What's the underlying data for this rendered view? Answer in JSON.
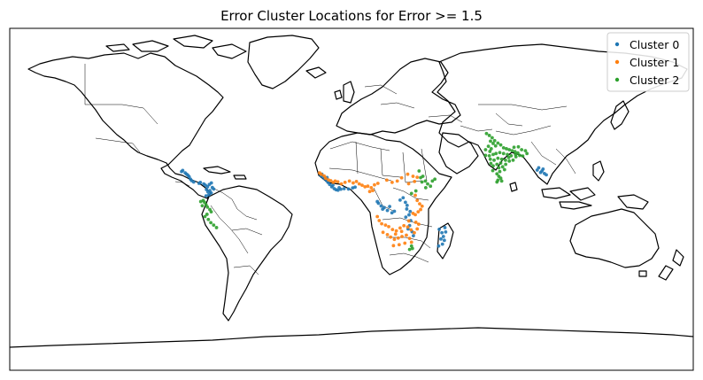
{
  "chart_data": {
    "type": "scatter",
    "title": "Error Cluster Locations for Error >= 1.5",
    "projection": "PlateCarree",
    "xlim": [
      -180,
      180
    ],
    "ylim": [
      -90,
      90
    ],
    "legend_position": "top-right",
    "series": [
      {
        "name": "Cluster 0",
        "color": "#1f77b4",
        "points": [
          [
            -89.5,
            14.6
          ],
          [
            -88.9,
            15.2
          ],
          [
            -87.6,
            13.9
          ],
          [
            -86.8,
            13.2
          ],
          [
            -86.1,
            12.6
          ],
          [
            -85.5,
            11.9
          ],
          [
            -84.8,
            10.6
          ],
          [
            -84.2,
            9.8
          ],
          [
            -83.1,
            9.1
          ],
          [
            -80.3,
            8.4
          ],
          [
            -79.6,
            8.9
          ],
          [
            -77.8,
            8.1
          ],
          [
            -76.9,
            7.4
          ],
          [
            -75.8,
            6.6
          ],
          [
            -76.4,
            5.1
          ],
          [
            -75.6,
            3.9
          ],
          [
            -74.6,
            4.6
          ],
          [
            -73.9,
            3.3
          ],
          [
            -75.1,
            2.4
          ],
          [
            -76.6,
            1.8
          ],
          [
            -73.3,
            6.2
          ],
          [
            -72.6,
            5.4
          ],
          [
            -74.9,
            7.8
          ],
          [
            -73.8,
            8.6
          ],
          [
            -16.2,
            12.5
          ],
          [
            -15.1,
            11.8
          ],
          [
            -14.2,
            10.9
          ],
          [
            -13.2,
            9.9
          ],
          [
            -12.4,
            8.9
          ],
          [
            -11.5,
            7.8
          ],
          [
            -10.4,
            6.6
          ],
          [
            -9.1,
            5.6
          ],
          [
            -8.1,
            5.0
          ],
          [
            -7.1,
            4.8
          ],
          [
            -5.6,
            5.3
          ],
          [
            -3.9,
            5.6
          ],
          [
            -1.6,
            5.4
          ],
          [
            0.6,
            6.0
          ],
          [
            1.9,
            6.4
          ],
          [
            -15.6,
            13.2
          ],
          [
            -12.9,
            11.5
          ],
          [
            -9.8,
            7.4
          ],
          [
            -6.5,
            6.1
          ],
          [
            14.2,
            -2.1
          ],
          [
            15.6,
            -3.5
          ],
          [
            17.2,
            -4.4
          ],
          [
            18.9,
            -5.9
          ],
          [
            21.3,
            -7.1
          ],
          [
            13.6,
            -1.2
          ],
          [
            16.4,
            -5.2
          ],
          [
            20.1,
            -3.8
          ],
          [
            22.6,
            -6.3
          ],
          [
            25.6,
            -0.4
          ],
          [
            27.2,
            0.8
          ],
          [
            28.4,
            -1.6
          ],
          [
            29.3,
            -3.2
          ],
          [
            29.1,
            -5.1
          ],
          [
            30.3,
            -8.2
          ],
          [
            31.2,
            -11.2
          ],
          [
            30.6,
            -13.8
          ],
          [
            29.8,
            -15.6
          ],
          [
            31.9,
            -17.1
          ],
          [
            32.6,
            -19.2
          ],
          [
            28.6,
            -9.4
          ],
          [
            30.9,
            -6.4
          ],
          [
            46.2,
            -15.8
          ],
          [
            47.6,
            -17.6
          ],
          [
            48.4,
            -19.6
          ],
          [
            48.9,
            -21.6
          ],
          [
            47.9,
            -23.6
          ],
          [
            49.2,
            -14.9
          ],
          [
            49.6,
            -17.2
          ],
          [
            47.1,
            -20.9
          ],
          [
            45.9,
            -24.6
          ],
          [
            100.3,
            14.9
          ],
          [
            101.6,
            13.6
          ],
          [
            100.9,
            15.9
          ],
          [
            98.6,
            16.6
          ],
          [
            99.6,
            14.1
          ],
          [
            102.6,
            12.9
          ],
          [
            97.8,
            15.4
          ]
        ]
      },
      {
        "name": "Cluster 1",
        "color": "#ff7f0e",
        "points": [
          [
            -16.8,
            13.9
          ],
          [
            -15.9,
            13.1
          ],
          [
            -14.4,
            12.3
          ],
          [
            -13.6,
            11.1
          ],
          [
            -12.1,
            10.2
          ],
          [
            -10.9,
            9.8
          ],
          [
            -9.6,
            8.9
          ],
          [
            -8.6,
            9.6
          ],
          [
            -7.2,
            9.2
          ],
          [
            -5.3,
            8.1
          ],
          [
            -3.4,
            8.9
          ],
          [
            -1.1,
            9.6
          ],
          [
            0.9,
            8.6
          ],
          [
            2.6,
            9.4
          ],
          [
            4.1,
            8.1
          ],
          [
            5.6,
            7.4
          ],
          [
            7.1,
            6.6
          ],
          [
            8.6,
            6.9
          ],
          [
            10.4,
            6.1
          ],
          [
            12.1,
            7.6
          ],
          [
            13.9,
            8.4
          ],
          [
            11.2,
            4.6
          ],
          [
            9.6,
            4.1
          ],
          [
            18.6,
            10.1
          ],
          [
            21.4,
            8.9
          ],
          [
            24.1,
            9.6
          ],
          [
            26.4,
            11.3
          ],
          [
            29.6,
            13.2
          ],
          [
            32.4,
            12.1
          ],
          [
            34.6,
            11.6
          ],
          [
            33.2,
            9.4
          ],
          [
            30.1,
            8.2
          ],
          [
            33.6,
            2.1
          ],
          [
            34.6,
            -0.6
          ],
          [
            35.9,
            -2.4
          ],
          [
            37.2,
            -3.6
          ],
          [
            36.4,
            -5.4
          ],
          [
            35.1,
            -6.6
          ],
          [
            33.6,
            -8.1
          ],
          [
            32.4,
            -7.4
          ],
          [
            13.6,
            -9.1
          ],
          [
            14.6,
            -11.2
          ],
          [
            15.9,
            -12.9
          ],
          [
            17.9,
            -13.6
          ],
          [
            19.6,
            -14.4
          ],
          [
            21.6,
            -15.9
          ],
          [
            23.6,
            -16.6
          ],
          [
            25.6,
            -15.1
          ],
          [
            27.6,
            -13.9
          ],
          [
            29.6,
            -14.6
          ],
          [
            31.4,
            -16.1
          ],
          [
            33.1,
            -17.6
          ],
          [
            34.6,
            -15.6
          ],
          [
            35.4,
            -13.1
          ],
          [
            33.9,
            -12.1
          ],
          [
            16.6,
            -17.4
          ],
          [
            18.9,
            -18.6
          ],
          [
            20.6,
            -19.9
          ],
          [
            22.6,
            -21.1
          ],
          [
            24.6,
            -20.4
          ],
          [
            26.6,
            -19.6
          ],
          [
            28.9,
            -18.9
          ],
          [
            30.6,
            -20.6
          ],
          [
            31.6,
            -22.6
          ],
          [
            28.1,
            -23.1
          ],
          [
            25.1,
            -23.9
          ],
          [
            22.1,
            -24.4
          ],
          [
            26.4,
            -16.9
          ],
          [
            23.2,
            -18.3
          ],
          [
            30.2,
            -11.4
          ]
        ]
      },
      {
        "name": "Cluster 2",
        "color": "#2ca02c",
        "points": [
          [
            -78.1,
            -0.6
          ],
          [
            -77.4,
            -1.6
          ],
          [
            -76.6,
            -2.9
          ],
          [
            -75.9,
            -4.1
          ],
          [
            -74.6,
            -5.4
          ],
          [
            -73.9,
            -6.6
          ],
          [
            -76.1,
            -7.9
          ],
          [
            -77.2,
            -9.1
          ],
          [
            -75.4,
            -10.6
          ],
          [
            -74.1,
            -12.3
          ],
          [
            -72.6,
            -13.6
          ],
          [
            -71.1,
            -14.9
          ],
          [
            -78.6,
            -3.4
          ],
          [
            -79.4,
            -1.2
          ],
          [
            35.6,
            14.9
          ],
          [
            37.6,
            12.1
          ],
          [
            38.9,
            9.6
          ],
          [
            40.1,
            8.1
          ],
          [
            41.6,
            6.9
          ],
          [
            39.1,
            6.1
          ],
          [
            42.6,
            9.6
          ],
          [
            43.9,
            10.6
          ],
          [
            37.1,
            9.1
          ],
          [
            36.4,
            11.4
          ],
          [
            33.9,
            4.4
          ],
          [
            31.6,
            3.1
          ],
          [
            31.6,
            -24.6
          ],
          [
            32.1,
            -25.9
          ],
          [
            30.6,
            -26.4
          ],
          [
            71.1,
            34.6
          ],
          [
            72.6,
            33.6
          ],
          [
            74.1,
            32.4
          ],
          [
            73.2,
            30.6
          ],
          [
            74.6,
            29.4
          ],
          [
            72.1,
            27.9
          ],
          [
            70.6,
            26.1
          ],
          [
            73.6,
            26.6
          ],
          [
            75.9,
            28.1
          ],
          [
            77.1,
            29.6
          ],
          [
            78.6,
            28.6
          ],
          [
            80.1,
            27.1
          ],
          [
            81.6,
            26.6
          ],
          [
            83.1,
            26.1
          ],
          [
            84.6,
            25.6
          ],
          [
            86.1,
            25.1
          ],
          [
            87.6,
            24.4
          ],
          [
            88.6,
            23.1
          ],
          [
            86.6,
            22.4
          ],
          [
            84.1,
            22.9
          ],
          [
            82.1,
            23.6
          ],
          [
            80.1,
            24.1
          ],
          [
            78.1,
            24.6
          ],
          [
            76.1,
            24.1
          ],
          [
            74.6,
            23.6
          ],
          [
            72.6,
            22.9
          ],
          [
            70.6,
            23.1
          ],
          [
            73.1,
            21.1
          ],
          [
            75.1,
            20.6
          ],
          [
            77.1,
            21.6
          ],
          [
            79.1,
            21.1
          ],
          [
            81.1,
            20.6
          ],
          [
            83.1,
            20.1
          ],
          [
            85.1,
            20.6
          ],
          [
            78.6,
            19.1
          ],
          [
            76.6,
            18.4
          ],
          [
            74.6,
            17.6
          ],
          [
            77.6,
            16.6
          ],
          [
            79.6,
            17.1
          ],
          [
            80.6,
            15.6
          ],
          [
            78.1,
            14.6
          ],
          [
            76.6,
            13.4
          ],
          [
            77.6,
            12.1
          ],
          [
            78.6,
            11.1
          ],
          [
            77.1,
            10.1
          ],
          [
            76.6,
            9.1
          ],
          [
            79.1,
            9.6
          ],
          [
            74.4,
            15.1
          ],
          [
            73.4,
            18.9
          ],
          [
            72.9,
            25.2
          ],
          [
            85.6,
            27.4
          ],
          [
            89.6,
            26.1
          ],
          [
            91.6,
            25.6
          ],
          [
            92.4,
            24.1
          ],
          [
            90.2,
            22.8
          ],
          [
            87.9,
            27.6
          ],
          [
            82.8,
            22.0
          ],
          [
            86.4,
            23.6
          ],
          [
            81.2,
            18.4
          ],
          [
            75.4,
            30.9
          ]
        ]
      }
    ]
  }
}
